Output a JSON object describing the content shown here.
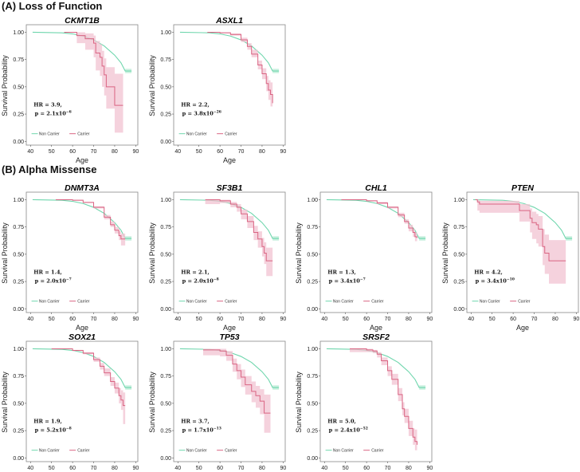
{
  "sections": {
    "a": "(A) Loss of Function",
    "b": "(B) Alpha Missense"
  },
  "colors": {
    "non_carrier": "#6fd6ad",
    "non_carrier_ci": "#c9f0df",
    "carrier": "#d96482",
    "carrier_ci": "#f2c3d1"
  },
  "chart_data": [
    {
      "type": "line",
      "title": "CKMT1B",
      "section": "A",
      "xlabel": "Age",
      "ylabel": "Survival Probability",
      "xticks": [
        40,
        50,
        60,
        70,
        80,
        90
      ],
      "yticks": [
        "0.00",
        "0.25",
        "0.50",
        "0.75",
        "1.00"
      ],
      "xlim": [
        38,
        91
      ],
      "ylim": [
        -0.02,
        1.04
      ],
      "legend": [
        "Non Carrier",
        "Carrier"
      ],
      "hr": "HR = 3.9,",
      "p_base": "p = 2.1x10",
      "p_exp": "−6",
      "carrier": [
        [
          56,
          1,
          1,
          1
        ],
        [
          62,
          0.97,
          0.9,
          1
        ],
        [
          66,
          0.94,
          0.84,
          0.99
        ],
        [
          70,
          0.9,
          0.77,
          0.97
        ],
        [
          71,
          0.81,
          0.65,
          0.92
        ],
        [
          73,
          0.77,
          0.6,
          0.89
        ],
        [
          74,
          0.69,
          0.5,
          0.83
        ],
        [
          75,
          0.61,
          0.42,
          0.76
        ],
        [
          76,
          0.5,
          0.3,
          0.68
        ],
        [
          80,
          0.33,
          0.08,
          0.62
        ],
        [
          84,
          0.33,
          0.08,
          0.62
        ]
      ]
    },
    {
      "type": "line",
      "title": "ASXL1",
      "section": "A",
      "xlabel": "Age",
      "ylabel": "Survival Probability",
      "xticks": [
        40,
        50,
        60,
        70,
        80,
        90
      ],
      "yticks": [
        "0.00",
        "0.25",
        "0.50",
        "0.75",
        "1.00"
      ],
      "xlim": [
        38,
        91
      ],
      "ylim": [
        -0.02,
        1.04
      ],
      "legend": [
        "Non Carrier",
        "Carrier"
      ],
      "hr": "HR = 2.2,",
      "p_base": "p = 3.8x10",
      "p_exp": "−26",
      "carrier": [
        [
          54,
          1,
          1,
          1
        ],
        [
          60,
          0.995,
          0.99,
          1
        ],
        [
          65,
          0.98,
          0.97,
          0.99
        ],
        [
          70,
          0.93,
          0.91,
          0.95
        ],
        [
          73,
          0.87,
          0.84,
          0.9
        ],
        [
          75,
          0.8,
          0.77,
          0.84
        ],
        [
          78,
          0.7,
          0.66,
          0.74
        ],
        [
          80,
          0.62,
          0.57,
          0.67
        ],
        [
          82,
          0.53,
          0.46,
          0.6
        ],
        [
          83,
          0.47,
          0.38,
          0.56
        ],
        [
          84,
          0.43,
          0.32,
          0.54
        ],
        [
          85,
          0.35,
          0.19,
          0.5
        ]
      ]
    },
    {
      "type": "line",
      "title": "DNMT3A",
      "section": "B",
      "xlabel": "Age",
      "ylabel": "Survival Probability",
      "xticks": [
        40,
        50,
        60,
        70,
        80,
        90
      ],
      "yticks": [
        "0.00",
        "0.25",
        "0.50",
        "0.75",
        "1.00"
      ],
      "xlim": [
        38,
        91
      ],
      "ylim": [
        -0.02,
        1.04
      ],
      "legend": [
        "Non Carrier",
        "Carrier"
      ],
      "hr": "HR = 1.4,",
      "p_base": "p = 2.0x10",
      "p_exp": "−7",
      "carrier": [
        [
          52,
          1,
          1,
          1
        ],
        [
          60,
          0.995,
          0.99,
          1
        ],
        [
          65,
          0.975,
          0.97,
          0.98
        ],
        [
          70,
          0.93,
          0.92,
          0.94
        ],
        [
          75,
          0.84,
          0.82,
          0.86
        ],
        [
          78,
          0.77,
          0.75,
          0.8
        ],
        [
          80,
          0.72,
          0.69,
          0.75
        ],
        [
          82,
          0.67,
          0.63,
          0.71
        ],
        [
          83,
          0.64,
          0.58,
          0.69
        ],
        [
          85,
          0.64,
          0.58,
          0.69
        ]
      ]
    },
    {
      "type": "line",
      "title": "SF3B1",
      "section": "B",
      "xlabel": "Age",
      "ylabel": "Survival Probability",
      "xticks": [
        40,
        50,
        60,
        70,
        80,
        90
      ],
      "yticks": [
        "0.00",
        "0.25",
        "0.50",
        "0.75",
        "1.00"
      ],
      "xlim": [
        38,
        91
      ],
      "ylim": [
        -0.02,
        1.04
      ],
      "legend": [
        "Non Carrier",
        "Carrier"
      ],
      "hr": "HR = 2.1,",
      "p_base": "p = 2.0x10",
      "p_exp": "−8",
      "carrier": [
        [
          53,
          1,
          0.96,
          1
        ],
        [
          60,
          0.99,
          0.97,
          1
        ],
        [
          65,
          0.96,
          0.93,
          0.98
        ],
        [
          68,
          0.93,
          0.89,
          0.96
        ],
        [
          70,
          0.87,
          0.82,
          0.91
        ],
        [
          73,
          0.8,
          0.74,
          0.85
        ],
        [
          76,
          0.7,
          0.63,
          0.76
        ],
        [
          78,
          0.64,
          0.56,
          0.71
        ],
        [
          80,
          0.57,
          0.48,
          0.65
        ],
        [
          81,
          0.51,
          0.41,
          0.61
        ],
        [
          82,
          0.44,
          0.3,
          0.56
        ],
        [
          85,
          0.44,
          0.3,
          0.56
        ]
      ]
    },
    {
      "type": "line",
      "title": "CHL1",
      "section": "B",
      "xlabel": "Age",
      "ylabel": "Survival Probability",
      "xticks": [
        40,
        50,
        60,
        70,
        80,
        90
      ],
      "yticks": [
        "0.00",
        "0.25",
        "0.50",
        "0.75",
        "1.00"
      ],
      "xlim": [
        38,
        91
      ],
      "ylim": [
        -0.02,
        1.04
      ],
      "legend": [
        "Non Carrier",
        "Carrier"
      ],
      "hr": "HR = 1.3,",
      "p_base": "p = 3.4x10",
      "p_exp": "−7",
      "carrier": [
        [
          48,
          1,
          1,
          1
        ],
        [
          60,
          0.99,
          0.985,
          0.995
        ],
        [
          65,
          0.97,
          0.96,
          0.98
        ],
        [
          70,
          0.93,
          0.92,
          0.94
        ],
        [
          75,
          0.86,
          0.84,
          0.88
        ],
        [
          78,
          0.8,
          0.78,
          0.82
        ],
        [
          80,
          0.74,
          0.71,
          0.77
        ],
        [
          82,
          0.7,
          0.66,
          0.73
        ],
        [
          83,
          0.66,
          0.62,
          0.7
        ],
        [
          84,
          0.65,
          0.61,
          0.7
        ]
      ]
    },
    {
      "type": "line",
      "title": "PTEN",
      "section": "B",
      "xlabel": "Age",
      "ylabel": "Survival Probability",
      "xticks": [
        40,
        50,
        60,
        70,
        80,
        90
      ],
      "yticks": [
        "0.00",
        "0.25",
        "0.50",
        "0.75",
        "1.00"
      ],
      "xlim": [
        38,
        91
      ],
      "ylim": [
        -0.02,
        1.04
      ],
      "legend": [
        "Non Carrier",
        "Carrier"
      ],
      "hr": "HR = 4.2,",
      "p_base": "p = 3.4x10",
      "p_exp": "−10",
      "carrier": [
        [
          42,
          1,
          1,
          1
        ],
        [
          43,
          0.98,
          0.9,
          1
        ],
        [
          44,
          0.96,
          0.88,
          0.99
        ],
        [
          63,
          0.9,
          0.8,
          0.96
        ],
        [
          68,
          0.83,
          0.7,
          0.92
        ],
        [
          69,
          0.79,
          0.64,
          0.89
        ],
        [
          71,
          0.77,
          0.6,
          0.87
        ],
        [
          72,
          0.73,
          0.57,
          0.85
        ],
        [
          74,
          0.57,
          0.4,
          0.73
        ],
        [
          75,
          0.51,
          0.32,
          0.68
        ],
        [
          77,
          0.44,
          0.23,
          0.63
        ],
        [
          85,
          0.44,
          0.23,
          0.63
        ]
      ]
    },
    {
      "type": "line",
      "title": "SOX21",
      "section": "B",
      "xlabel": "Age",
      "ylabel": "Survival Probability",
      "xticks": [
        40,
        50,
        60,
        70,
        80,
        90
      ],
      "yticks": [
        "0.00",
        "0.25",
        "0.50",
        "0.75",
        "1.00"
      ],
      "xlim": [
        38,
        91
      ],
      "ylim": [
        -0.02,
        1.04
      ],
      "legend": [
        "Non Carrier",
        "Carrier"
      ],
      "hr": "HR = 1.9,",
      "p_base": "p = 5.2x10",
      "p_exp": "−8",
      "carrier": [
        [
          50,
          1,
          1,
          1
        ],
        [
          60,
          0.985,
          0.98,
          0.99
        ],
        [
          65,
          0.96,
          0.95,
          0.97
        ],
        [
          70,
          0.9,
          0.88,
          0.92
        ],
        [
          73,
          0.84,
          0.81,
          0.87
        ],
        [
          75,
          0.78,
          0.75,
          0.82
        ],
        [
          78,
          0.7,
          0.66,
          0.74
        ],
        [
          80,
          0.64,
          0.59,
          0.69
        ],
        [
          82,
          0.57,
          0.5,
          0.64
        ],
        [
          83,
          0.53,
          0.44,
          0.62
        ],
        [
          84,
          0.48,
          0.31,
          0.6
        ],
        [
          85,
          0.48,
          0.31,
          0.6
        ]
      ]
    },
    {
      "type": "line",
      "title": "TP53",
      "section": "B",
      "xlabel": "Age",
      "ylabel": "Survival Probability",
      "xticks": [
        40,
        50,
        60,
        70,
        80,
        90
      ],
      "yticks": [
        "0.00",
        "0.25",
        "0.50",
        "0.75",
        "1.00"
      ],
      "xlim": [
        38,
        91
      ],
      "ylim": [
        -0.02,
        1.04
      ],
      "legend": [
        "Non Carrier",
        "Carrier"
      ],
      "hr": "HR = 3.7,",
      "p_base": "p = 1.7x10",
      "p_exp": "−13",
      "carrier": [
        [
          52,
          0.99,
          0.94,
          1
        ],
        [
          60,
          0.98,
          0.93,
          1
        ],
        [
          63,
          0.94,
          0.89,
          0.98
        ],
        [
          66,
          0.86,
          0.79,
          0.91
        ],
        [
          68,
          0.8,
          0.72,
          0.86
        ],
        [
          70,
          0.74,
          0.65,
          0.81
        ],
        [
          72,
          0.67,
          0.58,
          0.75
        ],
        [
          75,
          0.61,
          0.51,
          0.7
        ],
        [
          77,
          0.57,
          0.46,
          0.66
        ],
        [
          79,
          0.52,
          0.4,
          0.63
        ],
        [
          81,
          0.41,
          0.23,
          0.58
        ],
        [
          84,
          0.41,
          0.23,
          0.58
        ]
      ]
    },
    {
      "type": "line",
      "title": "SRSF2",
      "section": "B",
      "xlabel": "Age",
      "ylabel": "Survival Probability",
      "xticks": [
        40,
        50,
        60,
        70,
        80,
        90
      ],
      "yticks": [
        "0.00",
        "0.25",
        "0.50",
        "0.75",
        "1.00"
      ],
      "xlim": [
        38,
        91
      ],
      "ylim": [
        -0.02,
        1.04
      ],
      "legend": [
        "Non Carrier",
        "Carrier"
      ],
      "hr": "HR = 5.0,",
      "p_base": "p = 2.4x10",
      "p_exp": "−52",
      "carrier": [
        [
          52,
          1,
          0.97,
          1
        ],
        [
          60,
          0.99,
          0.97,
          1
        ],
        [
          63,
          0.98,
          0.96,
          0.99
        ],
        [
          65,
          0.95,
          0.92,
          0.97
        ],
        [
          67,
          0.89,
          0.85,
          0.92
        ],
        [
          70,
          0.8,
          0.75,
          0.84
        ],
        [
          72,
          0.72,
          0.67,
          0.77
        ],
        [
          75,
          0.58,
          0.52,
          0.64
        ],
        [
          77,
          0.45,
          0.39,
          0.51
        ],
        [
          78,
          0.38,
          0.32,
          0.45
        ],
        [
          80,
          0.27,
          0.2,
          0.34
        ],
        [
          82,
          0.19,
          0.12,
          0.27
        ],
        [
          83,
          0.15,
          0.07,
          0.26
        ],
        [
          84,
          0.12,
          0.04,
          0.26
        ]
      ]
    }
  ],
  "non_carrier_curve": [
    [
      41,
      1
    ],
    [
      55,
      0.995
    ],
    [
      60,
      0.985
    ],
    [
      65,
      0.965
    ],
    [
      70,
      0.93
    ],
    [
      75,
      0.875
    ],
    [
      80,
      0.79
    ],
    [
      83,
      0.72
    ],
    [
      85,
      0.645
    ],
    [
      88,
      0.645
    ]
  ]
}
